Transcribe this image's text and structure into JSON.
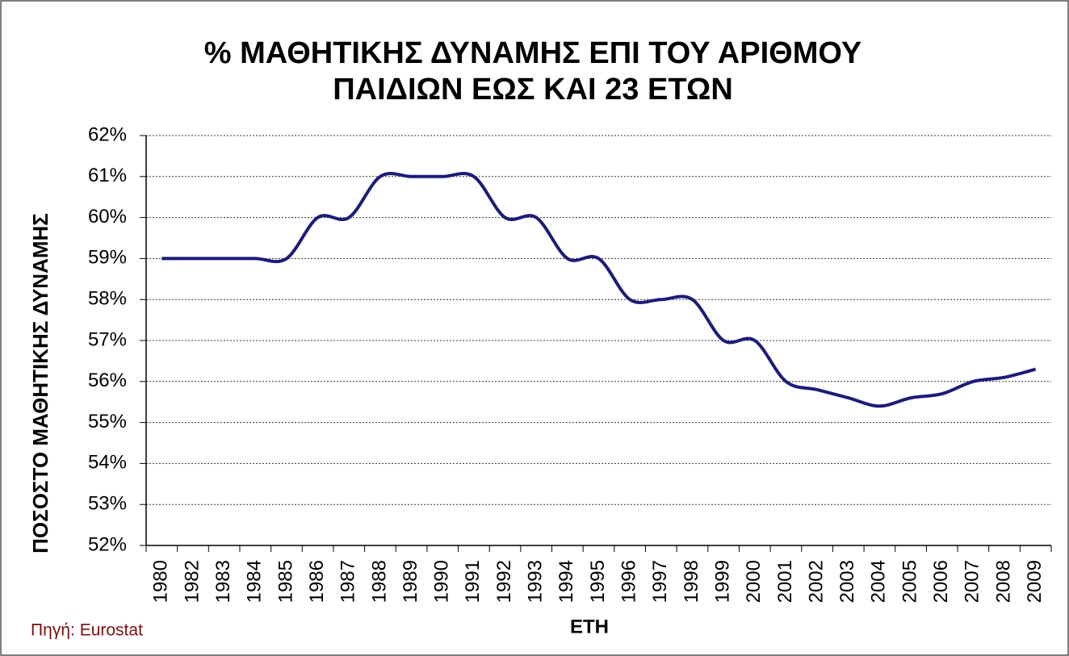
{
  "chart_data": {
    "type": "line",
    "title": [
      "% ΜΑΘΗΤΙΚΗΣ ΔΥΝΑΜΗΣ ΕΠΙ ΤΟΥ ΑΡΙΘΜΟΥ",
      "ΠΑΙΔΙΩΝ ΕΩΣ ΚΑΙ 23 ΕΤΩΝ"
    ],
    "x_label": "ΕΤΗ",
    "y_label": "ΠΟΣΟΣΤΟ  ΜΑΘΗΤΙΚΗΣ ΔΥΝΑΜΗΣ",
    "source": "Πηγή: Eurostat",
    "categories": [
      "1980",
      "1982",
      "1983",
      "1984",
      "1985",
      "1986",
      "1987",
      "1988",
      "1989",
      "1990",
      "1991",
      "1992",
      "1993",
      "1994",
      "1995",
      "1996",
      "1997",
      "1998",
      "1999",
      "2000",
      "2001",
      "2002",
      "2003",
      "2004",
      "2005",
      "2006",
      "2007",
      "2008",
      "2009"
    ],
    "series": [
      {
        "color": "#1c1c78",
        "values": [
          59,
          59,
          59,
          59,
          59,
          60,
          60,
          61,
          61,
          61,
          61,
          60,
          60,
          59,
          59,
          58,
          58,
          58,
          57,
          57,
          56,
          55.8,
          55.6,
          55.4,
          55.6,
          55.7,
          56,
          56.1,
          56.3
        ]
      }
    ],
    "ylim": [
      52,
      62
    ],
    "yticks": [
      {
        "value": 52,
        "label": "52%"
      },
      {
        "value": 53,
        "label": "53%"
      },
      {
        "value": 54,
        "label": "54%"
      },
      {
        "value": 55,
        "label": "55%"
      },
      {
        "value": 56,
        "label": "56%"
      },
      {
        "value": 57,
        "label": "57%"
      },
      {
        "value": 58,
        "label": "58%"
      },
      {
        "value": 59,
        "label": "59%"
      },
      {
        "value": 60,
        "label": "60%"
      },
      {
        "value": 61,
        "label": "61%"
      },
      {
        "value": 62,
        "label": "62%"
      }
    ],
    "grid": true,
    "smooth": true
  }
}
